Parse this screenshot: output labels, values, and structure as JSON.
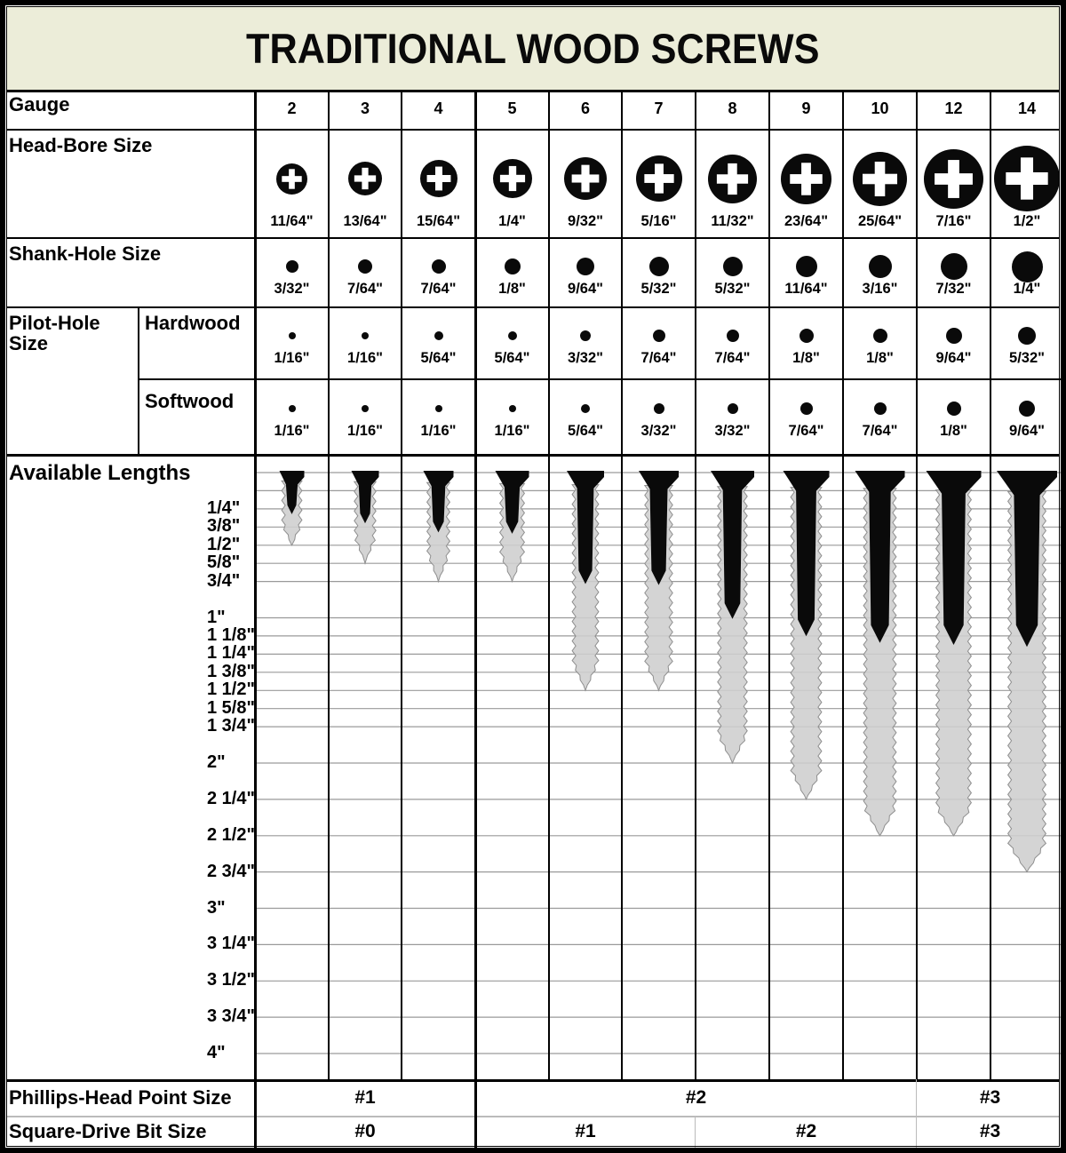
{
  "title": "TRADITIONAL WOOD SCREWS",
  "colors": {
    "title_bg": "#ecedd9",
    "line_black": "#000000",
    "grid_gray": "#9a9a9a",
    "screw_gray": "#cecece",
    "screw_outline": "#8f8f8f",
    "screw_black": "#0a0a0a",
    "divider_gray": "#bbbbbb"
  },
  "table": {
    "gauge": {
      "label": "Gauge",
      "values": [
        "2",
        "3",
        "4",
        "5",
        "6",
        "7",
        "8",
        "9",
        "10",
        "12",
        "14"
      ]
    },
    "head_bore": {
      "label": "Head-Bore Size",
      "values": [
        "11/64\"",
        "13/64\"",
        "15/64\"",
        "1/4\"",
        "9/32\"",
        "5/16\"",
        "11/32\"",
        "23/64\"",
        "25/64\"",
        "7/16\"",
        "1/2\""
      ]
    },
    "shank_hole": {
      "label": "Shank-Hole Size",
      "values": [
        "3/32\"",
        "7/64\"",
        "7/64\"",
        "1/8\"",
        "9/64\"",
        "5/32\"",
        "5/32\"",
        "11/64\"",
        "3/16\"",
        "7/32\"",
        "1/4\""
      ]
    },
    "pilot_hole": {
      "label": "Pilot-Hole Size",
      "hardwood_label": "Hardwood",
      "softwood_label": "Softwood",
      "hardwood": [
        "1/16\"",
        "1/16\"",
        "5/64\"",
        "5/64\"",
        "3/32\"",
        "7/64\"",
        "7/64\"",
        "1/8\"",
        "1/8\"",
        "9/64\"",
        "5/32\""
      ],
      "softwood": [
        "1/16\"",
        "1/16\"",
        "1/16\"",
        "1/16\"",
        "5/64\"",
        "3/32\"",
        "3/32\"",
        "7/64\"",
        "7/64\"",
        "1/8\"",
        "9/64\""
      ]
    },
    "lengths": {
      "label": "Available Lengths",
      "ticks": [
        {
          "label": "1/4\"",
          "inches": 0.25
        },
        {
          "label": "3/8\"",
          "inches": 0.375
        },
        {
          "label": "1/2\"",
          "inches": 0.5
        },
        {
          "label": "5/8\"",
          "inches": 0.625
        },
        {
          "label": "3/4\"",
          "inches": 0.75
        },
        {
          "label": "1\"",
          "inches": 1
        },
        {
          "label": "1 1/8\"",
          "inches": 1.125
        },
        {
          "label": "1 1/4\"",
          "inches": 1.25
        },
        {
          "label": "1 3/8\"",
          "inches": 1.375
        },
        {
          "label": "1 1/2\"",
          "inches": 1.5
        },
        {
          "label": "1 5/8\"",
          "inches": 1.625
        },
        {
          "label": "1 3/4\"",
          "inches": 1.75
        },
        {
          "label": "2\"",
          "inches": 2
        },
        {
          "label": "2 1/4\"",
          "inches": 2.25
        },
        {
          "label": "2 1/2\"",
          "inches": 2.5
        },
        {
          "label": "2 3/4\"",
          "inches": 2.75
        },
        {
          "label": "3\"",
          "inches": 3
        },
        {
          "label": "3 1/4\"",
          "inches": 3.25
        },
        {
          "label": "3 1/2\"",
          "inches": 3.5
        },
        {
          "label": "3 3/4\"",
          "inches": 3.75
        },
        {
          "label": "4\"",
          "inches": 4
        }
      ],
      "extra_gridlines_inches": [
        0,
        0.125
      ],
      "max_length_inches": [
        0.5,
        0.625,
        0.75,
        0.75,
        1.5,
        1.5,
        2,
        2.25,
        2.5,
        2.5,
        2.75
      ]
    },
    "phillips": {
      "label": "Phillips-Head Point Size",
      "spans": [
        {
          "label": "#1",
          "from": 0,
          "to": 2
        },
        {
          "label": "#2",
          "from": 3,
          "to": 8
        },
        {
          "label": "#3",
          "from": 9,
          "to": 10
        }
      ]
    },
    "square": {
      "label": "Square-Drive Bit Size",
      "spans": [
        {
          "label": "#0",
          "from": 0,
          "to": 2
        },
        {
          "label": "#1",
          "from": 3,
          "to": 5
        },
        {
          "label": "#2",
          "from": 6,
          "to": 8
        },
        {
          "label": "#3",
          "from": 9,
          "to": 10
        }
      ]
    }
  },
  "chart_data": {
    "type": "table",
    "title": "TRADITIONAL WOOD SCREWS",
    "columns_label": "Gauge",
    "columns": [
      "2",
      "3",
      "4",
      "5",
      "6",
      "7",
      "8",
      "9",
      "10",
      "12",
      "14"
    ],
    "rows": [
      {
        "label": "Head-Bore Size",
        "values": [
          "11/64\"",
          "13/64\"",
          "15/64\"",
          "1/4\"",
          "9/32\"",
          "5/16\"",
          "11/32\"",
          "23/64\"",
          "25/64\"",
          "7/16\"",
          "1/2\""
        ]
      },
      {
        "label": "Shank-Hole Size",
        "values": [
          "3/32\"",
          "7/64\"",
          "7/64\"",
          "1/8\"",
          "9/64\"",
          "5/32\"",
          "5/32\"",
          "11/64\"",
          "3/16\"",
          "7/32\"",
          "1/4\""
        ]
      },
      {
        "label": "Pilot-Hole Size (Hardwood)",
        "values": [
          "1/16\"",
          "1/16\"",
          "5/64\"",
          "5/64\"",
          "3/32\"",
          "7/64\"",
          "7/64\"",
          "1/8\"",
          "1/8\"",
          "9/64\"",
          "5/32\""
        ]
      },
      {
        "label": "Pilot-Hole Size (Softwood)",
        "values": [
          "1/16\"",
          "1/16\"",
          "1/16\"",
          "1/16\"",
          "5/64\"",
          "3/32\"",
          "3/32\"",
          "7/64\"",
          "7/64\"",
          "1/8\"",
          "9/64\""
        ]
      },
      {
        "label": "Maximum Available Length (inches, per screw drawing)",
        "values": [
          0.5,
          0.625,
          0.75,
          0.75,
          1.5,
          1.5,
          2,
          2.25,
          2.5,
          2.5,
          2.75
        ]
      },
      {
        "label": "Phillips-Head Point Size",
        "values": [
          "#1",
          "#1",
          "#1",
          "#2",
          "#2",
          "#2",
          "#2",
          "#2",
          "#2",
          "#3",
          "#3"
        ]
      },
      {
        "label": "Square-Drive Bit Size",
        "values": [
          "#0",
          "#0",
          "#0",
          "#1",
          "#1",
          "#1",
          "#2",
          "#2",
          "#2",
          "#3",
          "#3"
        ]
      }
    ],
    "available_length_ticks": [
      "1/4\"",
      "3/8\"",
      "1/2\"",
      "5/8\"",
      "3/4\"",
      "1\"",
      "1 1/8\"",
      "1 1/4\"",
      "1 3/8\"",
      "1 1/2\"",
      "1 5/8\"",
      "1 3/4\"",
      "2\"",
      "2 1/4\"",
      "2 1/2\"",
      "2 3/4\"",
      "3\"",
      "3 1/4\"",
      "3 1/2\"",
      "3 3/4\"",
      "4\""
    ]
  }
}
